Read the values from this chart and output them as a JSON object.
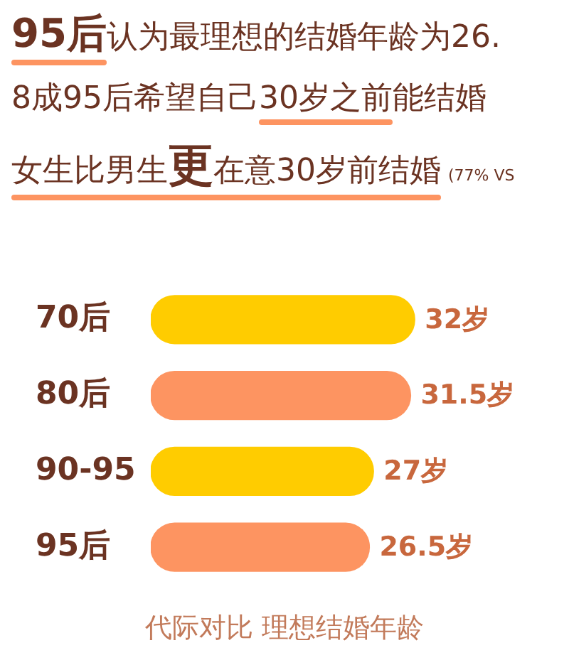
{
  "chart_data": {
    "type": "bar",
    "orientation": "horizontal",
    "title": "代际对比 理想结婚年龄",
    "annotations": [
      "95后认为最理想的结婚年龄为26.",
      "8成95后希望自己30岁之前能结婚",
      "女生比男生更在意30岁前结婚(77% VS"
    ],
    "categories": [
      "70后",
      "80后",
      "90-95",
      "95后"
    ],
    "values": [
      32,
      31.5,
      27,
      26.5
    ],
    "colors": [
      "#ffcc00",
      "#fd9461",
      "#ffcc00",
      "#fd9461"
    ],
    "value_labels": [
      "32岁",
      "31.5岁",
      "27岁",
      "26.5岁"
    ],
    "grid": false,
    "legend": false,
    "tick_labels": "y"
  }
}
